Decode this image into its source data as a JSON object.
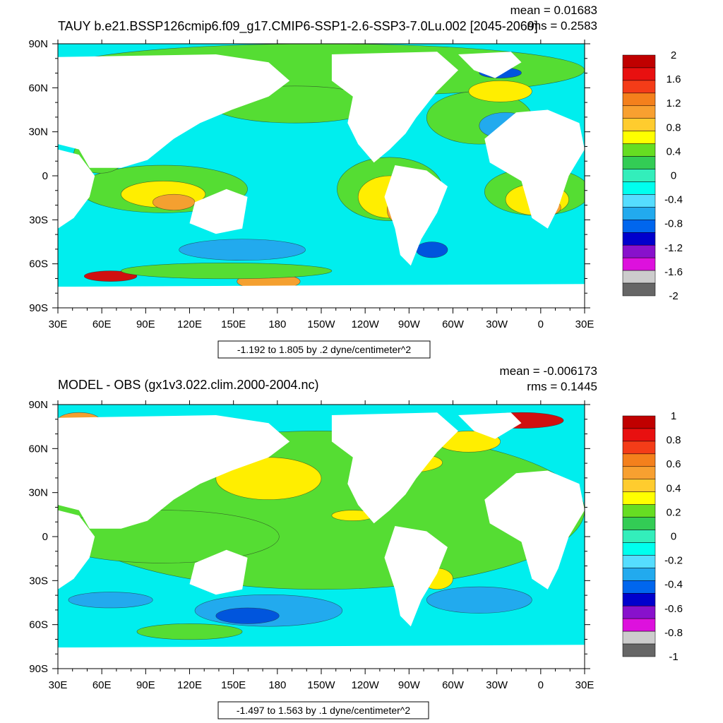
{
  "panels": [
    {
      "title": "TAUY b.e21.BSSP126cmip6.f09_g17.CMIP6-SSP1-2.6-SSP3-7.0Lu.002 [2045-2069]",
      "mean_text": "mean = 0.01683",
      "rms_text": "rms = 0.2583",
      "range_text": "-1.192 to 1.805 by .2 dyne/centimeter^2",
      "legend_labels": [
        "2",
        "1.6",
        "1.2",
        "0.8",
        "0.4",
        "0",
        "-0.4",
        "-0.8",
        "-1.2",
        "-1.6",
        "-2"
      ],
      "legend_colors": [
        "#c00000",
        "#e81010",
        "#f43c18",
        "#f4801c",
        "#f8a030",
        "#ffcc2e",
        "#ffff00",
        "#66dd22",
        "#33cc55",
        "#33eebb",
        "#00ffee",
        "#55ddff",
        "#22aaee",
        "#0066ee",
        "#0000cc",
        "#8811cc",
        "#dd11dd",
        "#cccccc",
        "#666666"
      ]
    },
    {
      "title": "MODEL - OBS (gx1v3.022.clim.2000-2004.nc)",
      "mean_text": "mean = -0.006173",
      "rms_text": "rms = 0.1445",
      "range_text": "-1.497 to 1.563 by .1 dyne/centimeter^2",
      "legend_labels": [
        "1",
        "0.8",
        "0.6",
        "0.4",
        "0.2",
        "0",
        "-0.2",
        "-0.4",
        "-0.6",
        "-0.8",
        "-1"
      ],
      "legend_colors": [
        "#c00000",
        "#e81010",
        "#f43c18",
        "#f4801c",
        "#f8a030",
        "#ffcc2e",
        "#ffff00",
        "#66dd22",
        "#33cc55",
        "#33eebb",
        "#00ffee",
        "#55ddff",
        "#22aaee",
        "#0066ee",
        "#0000cc",
        "#8811cc",
        "#dd11dd",
        "#cccccc",
        "#666666"
      ]
    }
  ],
  "lon_labels": [
    "30E",
    "60E",
    "90E",
    "120E",
    "150E",
    "180",
    "150W",
    "120W",
    "90W",
    "60W",
    "30W",
    "0",
    "30E"
  ],
  "lat_labels": [
    "90N",
    "60N",
    "30N",
    "0",
    "30S",
    "60S",
    "90S"
  ],
  "colors": {
    "ocean_base": "#00eeee",
    "land": "#ffffff",
    "green": "#55dd33",
    "yellow": "#ffee00",
    "orange": "#f4a030",
    "blue": "#22aaee",
    "darkblue": "#0055dd",
    "red": "#d01010"
  }
}
